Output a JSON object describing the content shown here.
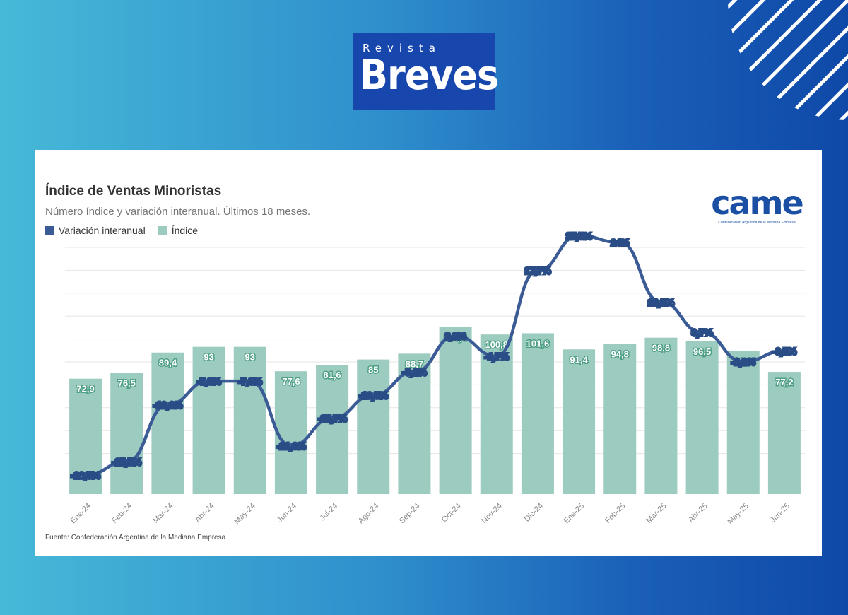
{
  "branding": {
    "logo_top": "Revista",
    "logo_main": "Breves",
    "came_logo": "came",
    "came_tagline": "Confederación Argentina de la Mediana Empresa"
  },
  "colors": {
    "bar": "#9ccbbf",
    "line": "#3a5b95",
    "bar_label_stroke": "#4f9f86",
    "line_label_stroke": "#2a4d86"
  },
  "chart_data": {
    "type": "bar",
    "title": "Índice de Ventas Minoristas",
    "subtitle": "Número índice y variación interanual. Últimos 18 meses.",
    "categories": [
      "Ene-24",
      "Feb-24",
      "Mar-24",
      "Abr-24",
      "May-24",
      "Jun-24",
      "Jul-24",
      "Ago-24",
      "Sep-24",
      "Oct-24",
      "Nov-24",
      "Dic-24",
      "Ene-25",
      "Feb-25",
      "Mar-25",
      "Abr-25",
      "May-25",
      "Jun-25"
    ],
    "series": [
      {
        "name": "Variación interanual",
        "type": "line",
        "values": [
          -28.5,
          -25.5,
          -12.6,
          -7.3,
          -7.3,
          -21.9,
          -15.7,
          -10.5,
          -5.2,
          2.9,
          -1.7,
          17.7,
          25.5,
          24,
          10.5,
          3.7,
          -2.9,
          -0.5
        ],
        "labels": [
          "-28,5%",
          "-25,5%",
          "-12,6%",
          "-7,3%",
          "-7,3%",
          "-21,9%",
          "-15,7%",
          "-10,5%",
          "-5,2%",
          "2,9%",
          "-1,7%",
          "17,7%",
          "25,5%",
          "24%",
          "10,5%",
          "3,7%",
          "-2,9%",
          "-0,5%"
        ]
      },
      {
        "name": "Índice",
        "type": "bar",
        "values": [
          72.9,
          76.5,
          89.4,
          93,
          93,
          77.6,
          81.6,
          85,
          88.7,
          105.4,
          100.8,
          101.6,
          91.4,
          94.8,
          98.8,
          96.5,
          90.3,
          77.2
        ],
        "labels": [
          "72,9",
          "76,5",
          "89,4",
          "93",
          "93",
          "77,6",
          "81,6",
          "85",
          "88,7",
          "105,4",
          "100,8",
          "101,6",
          "91,4",
          "94,8",
          "98,8",
          "96,5",
          "90,3",
          "77,2"
        ]
      }
    ],
    "legend_position": "top-left",
    "grid": true,
    "source": "Fuente: Confederación Argentina de la Mediana Empresa"
  }
}
